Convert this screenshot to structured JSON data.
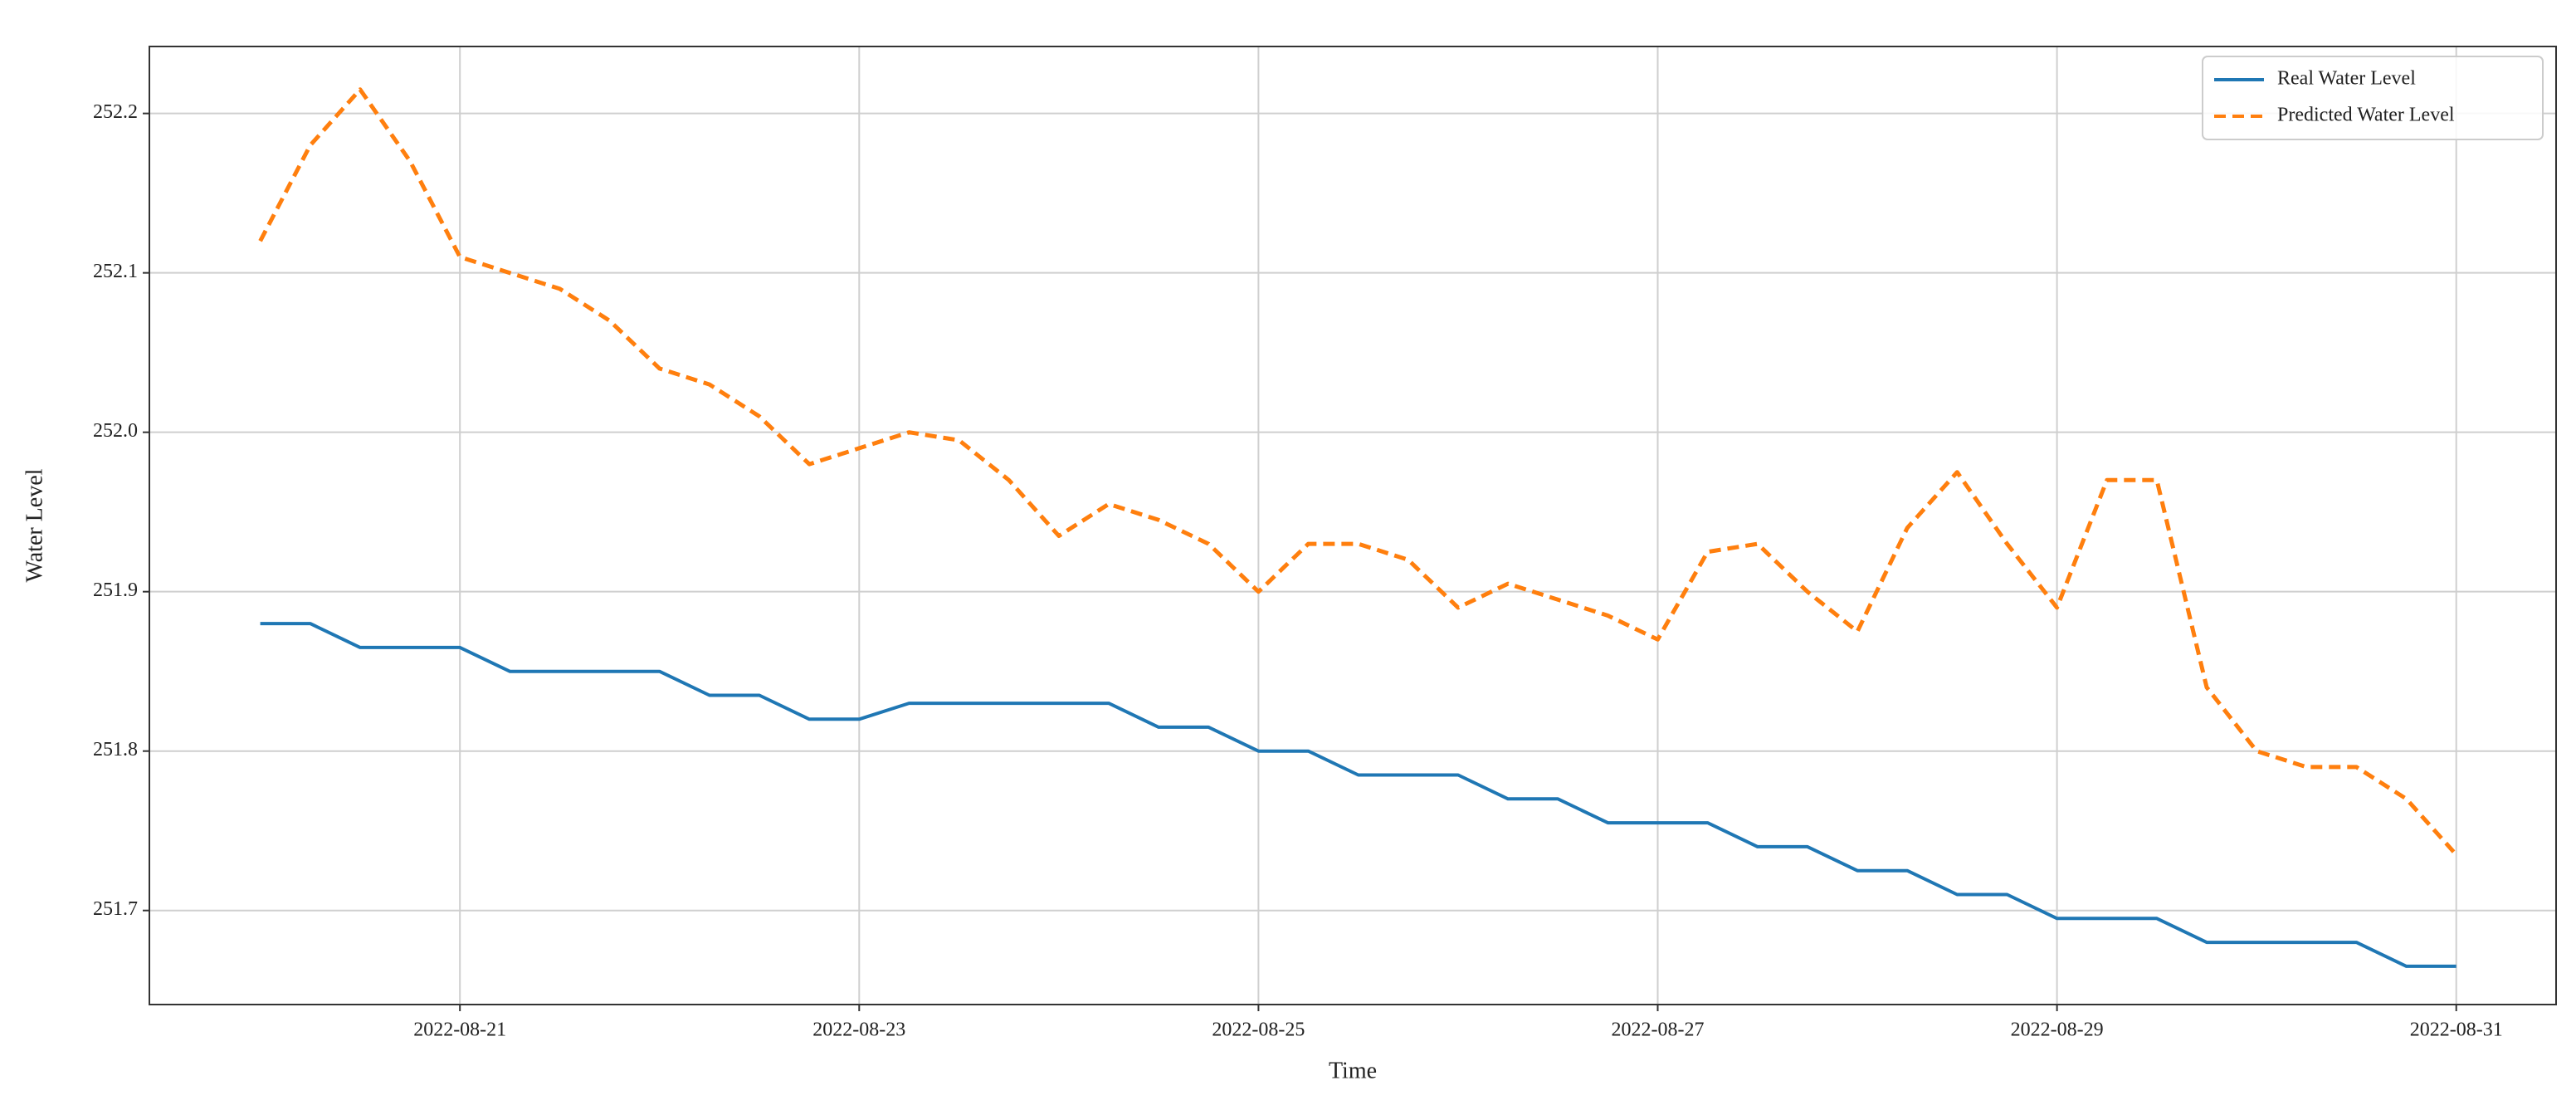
{
  "chart_data": {
    "type": "line",
    "xlabel": "Time",
    "ylabel": "Water Level",
    "x": [
      "2022-08-20T00:00",
      "2022-08-20T06:00",
      "2022-08-20T12:00",
      "2022-08-20T18:00",
      "2022-08-21T00:00",
      "2022-08-21T06:00",
      "2022-08-21T12:00",
      "2022-08-21T18:00",
      "2022-08-22T00:00",
      "2022-08-22T06:00",
      "2022-08-22T12:00",
      "2022-08-22T18:00",
      "2022-08-23T00:00",
      "2022-08-23T06:00",
      "2022-08-23T12:00",
      "2022-08-23T18:00",
      "2022-08-24T00:00",
      "2022-08-24T06:00",
      "2022-08-24T12:00",
      "2022-08-24T18:00",
      "2022-08-25T00:00",
      "2022-08-25T06:00",
      "2022-08-25T12:00",
      "2022-08-25T18:00",
      "2022-08-26T00:00",
      "2022-08-26T06:00",
      "2022-08-26T12:00",
      "2022-08-26T18:00",
      "2022-08-27T00:00",
      "2022-08-27T06:00",
      "2022-08-27T12:00",
      "2022-08-27T18:00",
      "2022-08-28T00:00",
      "2022-08-28T06:00",
      "2022-08-28T12:00",
      "2022-08-28T18:00",
      "2022-08-29T00:00",
      "2022-08-29T06:00",
      "2022-08-29T12:00",
      "2022-08-29T18:00",
      "2022-08-30T00:00",
      "2022-08-30T06:00",
      "2022-08-30T12:00",
      "2022-08-30T18:00",
      "2022-08-31T00:00"
    ],
    "series": [
      {
        "name": "Real Water Level",
        "color": "#1f77b4",
        "dash": false,
        "values": [
          251.88,
          251.88,
          251.865,
          251.865,
          251.865,
          251.85,
          251.85,
          251.85,
          251.85,
          251.835,
          251.835,
          251.82,
          251.82,
          251.83,
          251.83,
          251.83,
          251.83,
          251.83,
          251.815,
          251.815,
          251.8,
          251.8,
          251.785,
          251.785,
          251.785,
          251.77,
          251.77,
          251.755,
          251.755,
          251.755,
          251.74,
          251.74,
          251.725,
          251.725,
          251.71,
          251.71,
          251.695,
          251.695,
          251.695,
          251.68,
          251.68,
          251.68,
          251.68,
          251.665,
          251.665
        ]
      },
      {
        "name": "Predicted Water Level",
        "color": "#ff7f0e",
        "dash": true,
        "values": [
          252.12,
          252.18,
          252.215,
          252.17,
          252.11,
          252.1,
          252.09,
          252.07,
          252.04,
          252.03,
          252.01,
          251.98,
          251.99,
          252.0,
          251.995,
          251.97,
          251.935,
          251.955,
          251.945,
          251.93,
          251.9,
          251.93,
          251.93,
          251.92,
          251.89,
          251.905,
          251.895,
          251.885,
          251.87,
          251.925,
          251.93,
          251.9,
          251.875,
          251.94,
          251.975,
          251.93,
          251.89,
          251.97,
          251.97,
          251.84,
          251.8,
          251.79,
          251.79,
          251.77,
          251.735
        ]
      }
    ],
    "xlim": [
      "2022-08-19T10:40",
      "2022-08-31T12:00"
    ],
    "xticks": [
      "2022-08-21",
      "2022-08-23",
      "2022-08-25",
      "2022-08-27",
      "2022-08-29",
      "2022-08-31"
    ],
    "ylim": [
      251.641,
      252.242
    ],
    "yticks": [
      251.7,
      251.8,
      251.9,
      {
        "value": 252,
        "label": "252.0"
      },
      252.1,
      252.2
    ],
    "grid": true,
    "legend": "upper right"
  }
}
